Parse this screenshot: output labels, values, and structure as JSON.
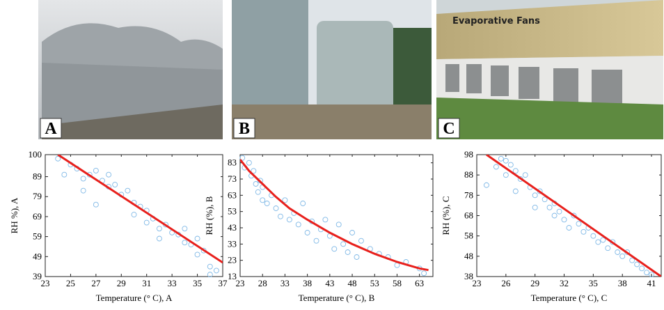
{
  "photos": [
    {
      "label": "A"
    },
    {
      "label": "B"
    },
    {
      "label": "C",
      "caption": "Evaporative Fans"
    }
  ],
  "chart_data": [
    {
      "type": "scatter",
      "x_label": "Temperature (° C), A",
      "y_label": "RH %), A",
      "xlim": [
        23,
        37
      ],
      "xticks": [
        23,
        25,
        27,
        29,
        31,
        33,
        35,
        37
      ],
      "ylim": [
        39,
        100
      ],
      "yticks": [
        39,
        49,
        59,
        69,
        79,
        89,
        100
      ],
      "series": [
        {
          "type": "scatter",
          "color": "#7fb8e6",
          "x": [
            24,
            24.5,
            25,
            25.5,
            26,
            26,
            26.5,
            27,
            27,
            27.5,
            28,
            28,
            28.5,
            29,
            29.5,
            30,
            30,
            30.5,
            31,
            31,
            31.5,
            32,
            32,
            32.5,
            33,
            33.5,
            34,
            34,
            34.5,
            35,
            35,
            35.5,
            36,
            36,
            36.5
          ],
          "values": [
            98,
            90,
            95,
            93,
            88,
            82,
            90,
            92,
            75,
            87,
            90,
            84,
            85,
            80,
            82,
            76,
            70,
            74,
            72,
            66,
            68,
            63,
            58,
            65,
            61,
            60,
            63,
            56,
            55,
            58,
            50,
            52,
            44,
            40,
            42
          ]
        },
        {
          "type": "line",
          "color": "#e8201c",
          "x": [
            24,
            37
          ],
          "values": [
            100,
            46
          ]
        }
      ]
    },
    {
      "type": "scatter",
      "x_label": "Temperature (° C), B",
      "y_label": "RH (%), B",
      "xlim": [
        23,
        66
      ],
      "xticks": [
        23,
        28,
        33,
        38,
        43,
        48,
        53,
        58,
        63
      ],
      "ylim": [
        13,
        88
      ],
      "yticks": [
        13,
        23,
        33,
        43,
        53,
        63,
        73,
        83
      ],
      "series": [
        {
          "type": "scatter",
          "color": "#7fb8e6",
          "x": [
            23.5,
            24,
            25,
            25.5,
            26,
            26.5,
            27,
            27.5,
            28,
            28,
            29,
            30,
            31,
            32,
            33,
            34,
            35,
            36,
            37,
            38,
            39,
            40,
            41,
            42,
            43,
            44,
            45,
            46,
            47,
            48,
            49,
            50,
            52,
            54,
            56,
            58,
            60,
            63,
            64
          ],
          "values": [
            86,
            80,
            83,
            75,
            78,
            70,
            65,
            72,
            60,
            68,
            58,
            63,
            55,
            50,
            60,
            48,
            52,
            45,
            58,
            40,
            47,
            35,
            42,
            48,
            38,
            30,
            45,
            33,
            28,
            40,
            25,
            35,
            30,
            27,
            25,
            20,
            22,
            18,
            15
          ]
        },
        {
          "type": "line",
          "color": "#e8201c",
          "x": [
            23,
            25,
            28,
            31,
            34,
            38,
            43,
            48,
            53,
            58,
            63,
            65
          ],
          "values": [
            85,
            78,
            70,
            62,
            55,
            48,
            40,
            33,
            27,
            22,
            18,
            17
          ]
        }
      ]
    },
    {
      "type": "scatter",
      "x_label": "Temperature (° C), C",
      "y_label": "RH (%), C",
      "xlim": [
        23,
        42
      ],
      "xticks": [
        23,
        26,
        29,
        32,
        35,
        38,
        41
      ],
      "ylim": [
        38,
        98
      ],
      "yticks": [
        38,
        48,
        58,
        68,
        78,
        88,
        98
      ],
      "series": [
        {
          "type": "scatter",
          "color": "#7fb8e6",
          "x": [
            24,
            25,
            25.5,
            26,
            26,
            26.5,
            27,
            27,
            27.5,
            28,
            28.5,
            29,
            29,
            29.5,
            30,
            30.5,
            31,
            31,
            31.5,
            32,
            32.5,
            33,
            33.5,
            34,
            34.5,
            35,
            35.5,
            36,
            36.5,
            37,
            37.5,
            38,
            38.5,
            39,
            39.5,
            40,
            40.5,
            41
          ],
          "values": [
            83,
            92,
            96,
            95,
            88,
            93,
            90,
            80,
            86,
            88,
            82,
            78,
            72,
            80,
            76,
            72,
            74,
            68,
            70,
            66,
            62,
            68,
            64,
            60,
            62,
            58,
            55,
            56,
            52,
            55,
            50,
            48,
            50,
            46,
            44,
            42,
            40,
            39
          ]
        },
        {
          "type": "line",
          "color": "#e8201c",
          "x": [
            24,
            42
          ],
          "values": [
            98,
            38
          ]
        }
      ]
    }
  ]
}
